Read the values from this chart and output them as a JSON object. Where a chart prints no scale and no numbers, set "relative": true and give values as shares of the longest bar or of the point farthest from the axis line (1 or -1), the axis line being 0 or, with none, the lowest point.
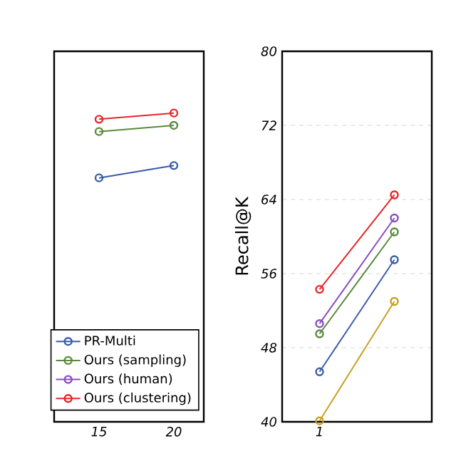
{
  "chart_data": [
    {
      "type": "line",
      "relative": true,
      "x": [
        15,
        20
      ],
      "xlim": [
        12,
        22
      ],
      "xticks": [
        15,
        20
      ],
      "marker": "circle",
      "legend": "bottom right",
      "series": [
        {
          "color": "#c8a020",
          "values": [
            null,
            null
          ]
        },
        {
          "name": "PR-Multi",
          "color": "#3a5ea8",
          "values": [
            0.79,
            0.83
          ]
        },
        {
          "name": "Ours (sampling)",
          "color": "#5a8a3c",
          "values": [
            0.94,
            0.96
          ]
        },
        {
          "name": "Ours (human)",
          "color": "#8a4fc0",
          "values": [
            null,
            null
          ]
        },
        {
          "name": "Ours (clustering)",
          "color": "#e8262a",
          "values": [
            0.98,
            1
          ]
        }
      ]
    },
    {
      "type": "line",
      "categories": [
        "1",
        null
      ],
      "ylim": [
        40,
        80
      ],
      "yticks": [
        40,
        48,
        56,
        64,
        72,
        80
      ],
      "ylabel": "Recall@K",
      "grid": "y",
      "marker": "circle",
      "series": [
        {
          "color": "#c8a020",
          "values": [
            40.1,
            53
          ]
        },
        {
          "color": "#3a5ea8",
          "values": [
            45.4,
            57.5
          ]
        },
        {
          "color": "#5a8a3c",
          "values": [
            49.5,
            60.5
          ]
        },
        {
          "color": "#8a4fc0",
          "values": [
            50.6,
            62
          ]
        },
        {
          "color": "#e8262a",
          "values": [
            54.3,
            64.5
          ]
        }
      ]
    }
  ]
}
